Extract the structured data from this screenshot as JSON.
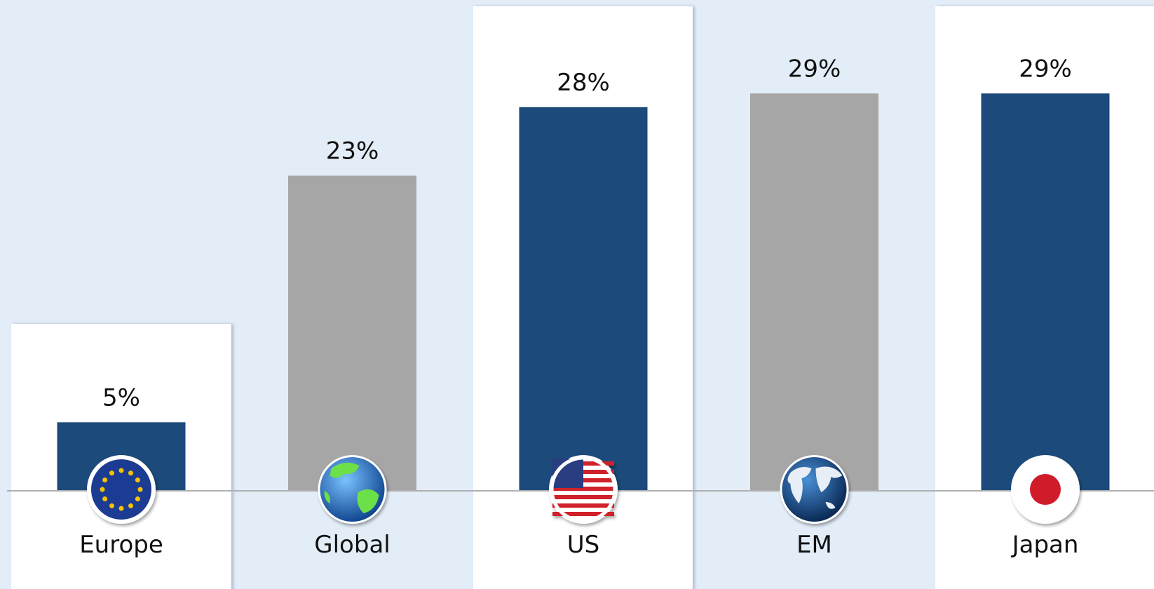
{
  "chart_data": {
    "type": "bar",
    "categories": [
      "Europe",
      "Global",
      "US",
      "EM",
      "Japan"
    ],
    "values": [
      5,
      23,
      28,
      29,
      29
    ],
    "value_labels": [
      "5%",
      "23%",
      "28%",
      "29%",
      "29%"
    ],
    "colors": [
      "#1c4a7a",
      "#a6a6a6",
      "#1c4a7a",
      "#a6a6a6",
      "#1c4a7a"
    ],
    "ylim": [
      0,
      35
    ]
  }
}
